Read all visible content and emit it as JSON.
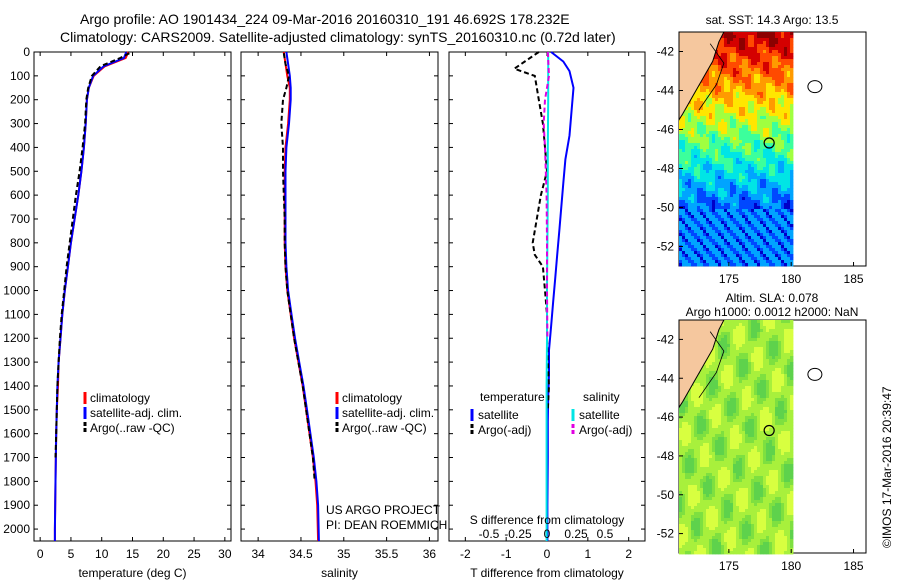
{
  "header": {
    "line1": "Argo profile: AO 1901434_224 09-Mar-2016 20160310_191 46.692S 178.232E",
    "line2": "Climatology: CARS2009. Satellite-adjusted climatology: synTS_20160310.nc (0.72d later)"
  },
  "colors": {
    "climatology": "#ff0000",
    "satellite": "#0000ff",
    "argo": "#000000",
    "satellite_salinity": "#00e5e5",
    "argo_salinity_adj": "#e000e0"
  },
  "chart_data": [
    {
      "type": "line",
      "panel": "temperature",
      "xlabel": "temperature (deg C)",
      "ylabel": "",
      "xlim": [
        -1,
        31
      ],
      "ylim": [
        2050,
        0
      ],
      "xticks": [
        0,
        5,
        10,
        15,
        20,
        25,
        30
      ],
      "yticks": [
        0,
        100,
        200,
        300,
        400,
        500,
        600,
        700,
        800,
        900,
        1000,
        1100,
        1200,
        1300,
        1400,
        1500,
        1600,
        1700,
        1800,
        1900,
        2000
      ],
      "legend": [
        "climatology",
        "satellite-adj. clim.",
        "Argo(..raw -QC)"
      ],
      "series": [
        {
          "name": "climatology",
          "color": "#ff0000",
          "x": [
            14.3,
            13.9,
            10.5,
            8.7,
            7.9,
            7.6,
            7.4,
            7.1,
            6.7,
            6.2,
            5.6,
            5.0,
            4.5,
            4.0,
            3.6,
            3.3,
            3.0,
            2.9,
            2.7,
            2.6,
            2.5,
            2.4,
            2.4
          ],
          "y": [
            0,
            25,
            60,
            100,
            150,
            200,
            300,
            400,
            500,
            600,
            700,
            800,
            900,
            1000,
            1100,
            1200,
            1300,
            1400,
            1500,
            1600,
            1800,
            2000,
            2050
          ]
        },
        {
          "name": "satellite-adj. clim.",
          "color": "#0000ff",
          "x": [
            14.0,
            13.6,
            10.3,
            8.6,
            7.9,
            7.6,
            7.4,
            7.1,
            6.7,
            6.2,
            5.6,
            5.0,
            4.5,
            4.0,
            3.6,
            3.3,
            3.0,
            2.8,
            2.7,
            2.6,
            2.5,
            2.4,
            2.4
          ],
          "y": [
            0,
            25,
            60,
            100,
            150,
            200,
            300,
            400,
            500,
            600,
            700,
            800,
            900,
            1000,
            1100,
            1200,
            1300,
            1400,
            1500,
            1600,
            1800,
            2000,
            2050
          ]
        },
        {
          "name": "Argo(..raw -QC)",
          "color": "#000000",
          "dashed": true,
          "x": [
            14.5,
            13.0,
            9.8,
            8.4,
            7.8,
            7.5,
            7.3,
            6.9,
            6.4,
            5.8,
            5.3,
            4.8,
            4.3,
            3.9,
            3.5,
            3.2,
            3.0,
            2.8,
            2.7,
            2.6,
            2.5
          ],
          "y": [
            5,
            25,
            60,
            100,
            150,
            200,
            300,
            400,
            500,
            600,
            700,
            800,
            900,
            1000,
            1100,
            1200,
            1300,
            1400,
            1500,
            1600,
            1700
          ]
        }
      ]
    },
    {
      "type": "line",
      "panel": "salinity",
      "xlabel": "salinity",
      "ylabel": "",
      "xlim": [
        33.8,
        36.1
      ],
      "ylim": [
        2050,
        0
      ],
      "xticks": [
        34,
        34.5,
        35,
        35.5,
        36
      ],
      "xtick_labels": [
        "34",
        "34.5",
        "35",
        "35.5",
        "36"
      ],
      "legend": [
        "climatology",
        "satellite-adj. clim.",
        "Argo(..raw -QC)"
      ],
      "annotations": [
        "US ARGO PROJECT",
        "PI: DEAN ROEMMICH"
      ],
      "series": [
        {
          "name": "climatology",
          "color": "#ff0000",
          "x": [
            34.3,
            34.32,
            34.34,
            34.37,
            34.37,
            34.35,
            34.32,
            34.31,
            34.31,
            34.31,
            34.31,
            34.32,
            34.34,
            34.38,
            34.42,
            34.47,
            34.52,
            34.56,
            34.6,
            34.64,
            34.67,
            34.69,
            34.7
          ],
          "y": [
            0,
            50,
            100,
            150,
            200,
            300,
            400,
            500,
            600,
            700,
            800,
            900,
            1000,
            1100,
            1200,
            1300,
            1400,
            1500,
            1600,
            1700,
            1800,
            1900,
            2050
          ]
        },
        {
          "name": "satellite-adj. clim.",
          "color": "#0000ff",
          "x": [
            34.33,
            34.35,
            34.37,
            34.38,
            34.38,
            34.36,
            34.33,
            34.32,
            34.32,
            34.32,
            34.32,
            34.33,
            34.35,
            34.39,
            34.43,
            34.48,
            34.53,
            34.57,
            34.61,
            34.65,
            34.68,
            34.7,
            34.71
          ],
          "y": [
            0,
            50,
            100,
            150,
            200,
            300,
            400,
            500,
            600,
            700,
            800,
            900,
            1000,
            1100,
            1200,
            1300,
            1400,
            1500,
            1600,
            1700,
            1800,
            1900,
            2050
          ]
        },
        {
          "name": "Argo(..raw -QC)",
          "color": "#000000",
          "dashed": true,
          "x": [
            34.3,
            34.32,
            34.36,
            34.33,
            34.29,
            34.27,
            34.29,
            34.29,
            34.3,
            34.31,
            34.31,
            34.32,
            34.34,
            34.38,
            34.42,
            34.47,
            34.52,
            34.56,
            34.6,
            34.64,
            34.66
          ],
          "y": [
            5,
            50,
            100,
            150,
            200,
            300,
            400,
            500,
            600,
            700,
            800,
            900,
            1000,
            1100,
            1200,
            1300,
            1400,
            1500,
            1600,
            1700,
            1800
          ]
        }
      ]
    },
    {
      "type": "line",
      "panel": "difference",
      "xlabel": "T difference from climatology",
      "xlabel_top": "S difference from climatology",
      "xlim": [
        -2.4,
        2.4
      ],
      "ylim": [
        2050,
        0
      ],
      "xticks": [
        -2,
        -1,
        0,
        1,
        2
      ],
      "xtick_labels": [
        "-2",
        "-1",
        "0",
        "1",
        "2"
      ],
      "s_ticks": [
        -0.5,
        -0.25,
        0,
        0.25,
        0.5
      ],
      "s_tick_labels": [
        "-0.5",
        "-0.25",
        "0",
        "0.25",
        "0.5"
      ],
      "legend_temperature_title": "temperature",
      "legend_salinity_title": "salinity",
      "legend": [
        "satellite",
        "Argo(-adj)",
        "satellite",
        "Argo(-adj)"
      ],
      "series": [
        {
          "name": "satellite",
          "group": "temperature",
          "color": "#0000ff",
          "x": [
            0.1,
            0.4,
            0.55,
            0.65,
            0.6,
            0.55,
            0.45,
            0.4,
            0.35,
            0.3,
            0.25,
            0.2,
            0.15,
            0.1,
            0.05,
            0.05,
            0.03,
            0.02,
            0.02,
            0.01,
            0.01
          ],
          "y": [
            0,
            40,
            80,
            150,
            250,
            350,
            450,
            550,
            650,
            750,
            850,
            950,
            1050,
            1150,
            1250,
            1350,
            1450,
            1550,
            1700,
            1900,
            2050
          ]
        },
        {
          "name": "Argo(-adj)",
          "group": "temperature",
          "color": "#000000",
          "dashed": true,
          "x": [
            -0.2,
            -0.8,
            -0.3,
            -0.2,
            -0.1,
            -0.05,
            0.0,
            -0.15,
            -0.25,
            -0.35,
            -0.3,
            -0.1,
            -0.05,
            0.0,
            0.0,
            0.02,
            0.05,
            0.02
          ],
          "y": [
            0,
            70,
            100,
            200,
            300,
            400,
            500,
            600,
            700,
            800,
            850,
            900,
            1000,
            1100,
            1200,
            1300,
            1400,
            1500
          ]
        },
        {
          "name": "satellite",
          "group": "salinity",
          "color": "#00e5e5",
          "x": [
            0.03,
            0.03,
            0.02,
            0.02,
            0.01,
            0.0,
            0.0,
            -0.01,
            -0.01,
            -0.01,
            -0.01
          ],
          "y": [
            0,
            200,
            400,
            600,
            800,
            1000,
            1200,
            1400,
            1600,
            1800,
            2050
          ]
        },
        {
          "name": "Argo(-adj)",
          "group": "salinity",
          "color": "#e000e0",
          "dashed": true,
          "x": [
            0.02,
            0.05,
            -0.05,
            -0.08,
            -0.05,
            -0.03,
            -0.01,
            0.0,
            0.0,
            0.01
          ],
          "y": [
            0,
            100,
            200,
            300,
            400,
            500,
            600,
            800,
            1000,
            1200
          ]
        }
      ]
    },
    {
      "type": "heatmap",
      "panel": "sst_map",
      "title": "sat. SST: 14.3 Argo: 13.5",
      "xlim": [
        171,
        186
      ],
      "ylim": [
        -53,
        -41
      ],
      "xticks": [
        175,
        180,
        185
      ],
      "yticks": [
        -42,
        -44,
        -46,
        -48,
        -50,
        -52
      ],
      "marker": {
        "lon": 178.232,
        "lat": -46.692
      }
    },
    {
      "type": "heatmap",
      "panel": "sla_map",
      "title_line1": "Altim. SLA: 0.078",
      "title_line2": "Argo h1000: 0.0012 h2000: NaN",
      "xlim": [
        171,
        186
      ],
      "ylim": [
        -53,
        -41
      ],
      "xticks": [
        175,
        180,
        185
      ],
      "yticks": [
        -42,
        -44,
        -46,
        -48,
        -50,
        -52
      ],
      "marker": {
        "lon": 178.232,
        "lat": -46.692
      }
    }
  ],
  "footer": {
    "stamp": "©IMOS 17-Mar-2016 20:39:47"
  }
}
